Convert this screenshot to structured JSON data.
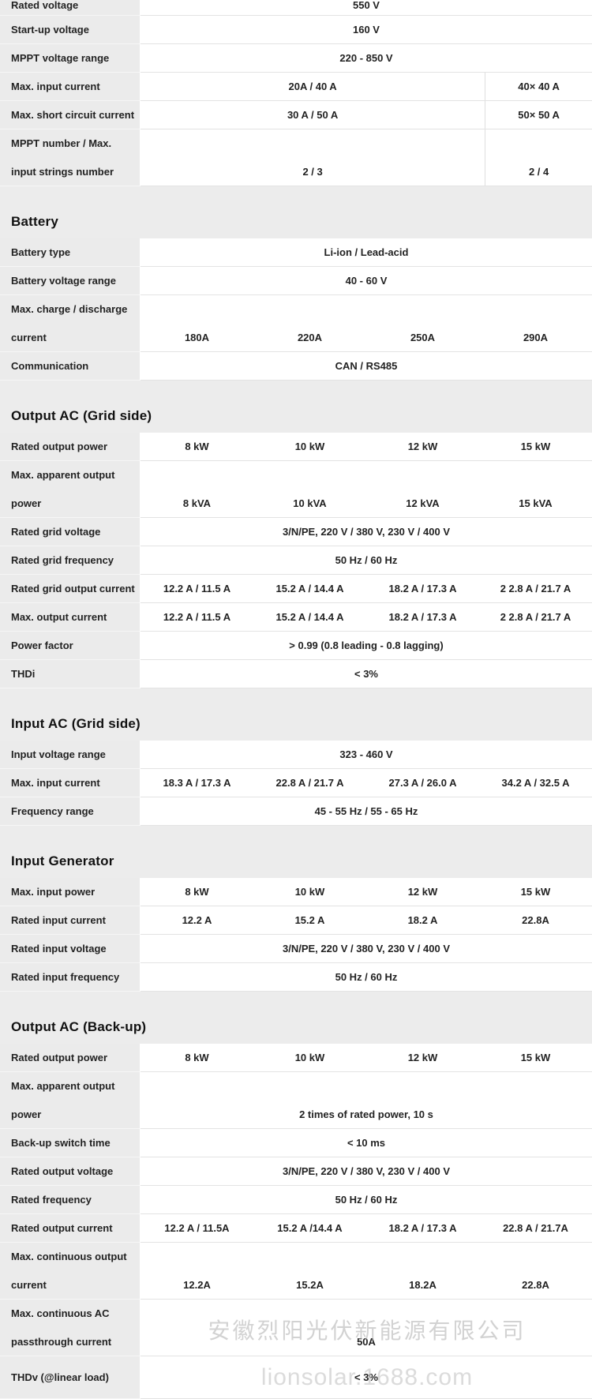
{
  "colors": {
    "label_bg": "#ebebeb",
    "section_bg": "#ececec",
    "row_border": "#e3e3e3",
    "text": "#222222",
    "watermark": "#c0c0c0"
  },
  "watermark": {
    "line1": "安徽烈阳光伏新能源有限公司",
    "line2": "lionsolar.1688.com"
  },
  "blocks": [
    {
      "type": "row",
      "variant": "partial",
      "label": [
        "Rated voltage"
      ],
      "layout": "full",
      "values": [
        "550 V"
      ]
    },
    {
      "type": "row",
      "label": [
        "Start-up voltage"
      ],
      "layout": "full",
      "values": [
        "160 V"
      ]
    },
    {
      "type": "row",
      "label": [
        "MPPT voltage range"
      ],
      "layout": "full",
      "values": [
        "220 - 850 V"
      ]
    },
    {
      "type": "row",
      "label": [
        "Max. input current"
      ],
      "layout": "split",
      "values": [
        "20A / 40 A",
        "40× 40 A"
      ]
    },
    {
      "type": "row",
      "label": [
        "Max. short circuit current"
      ],
      "layout": "split",
      "values": [
        "30 A / 50 A",
        "50× 50 A"
      ]
    },
    {
      "type": "row",
      "label": [
        "MPPT number / Max.",
        "input strings number"
      ],
      "layout": "split",
      "values": [
        "2 / 3",
        "2 / 4"
      ]
    },
    {
      "type": "section",
      "title": "Battery"
    },
    {
      "type": "row",
      "label": [
        "Battery type"
      ],
      "layout": "full",
      "values": [
        "Li-ion / Lead-acid"
      ]
    },
    {
      "type": "row",
      "label": [
        "Battery voltage range"
      ],
      "layout": "full",
      "values": [
        "40 - 60 V"
      ]
    },
    {
      "type": "row",
      "label": [
        "Max. charge / discharge",
        "current"
      ],
      "layout": "quad",
      "values": [
        "180A",
        "220A",
        "250A",
        "290A"
      ]
    },
    {
      "type": "row",
      "label": [
        "Communication"
      ],
      "layout": "full",
      "values": [
        "CAN / RS485"
      ]
    },
    {
      "type": "section",
      "title": "Output AC (Grid side)"
    },
    {
      "type": "row",
      "label": [
        "Rated output power"
      ],
      "layout": "quad",
      "values": [
        "8 kW",
        "10 kW",
        "12 kW",
        "15 kW"
      ]
    },
    {
      "type": "row",
      "label": [
        "Max. apparent output",
        "power"
      ],
      "layout": "quad",
      "values": [
        "8 kVA",
        "10 kVA",
        "12 kVA",
        "15 kVA"
      ]
    },
    {
      "type": "row",
      "label": [
        "Rated grid voltage"
      ],
      "layout": "full",
      "values": [
        "3/N/PE, 220 V / 380 V, 230 V / 400 V"
      ]
    },
    {
      "type": "row",
      "label": [
        "Rated grid frequency"
      ],
      "layout": "full",
      "values": [
        "50 Hz / 60 Hz"
      ]
    },
    {
      "type": "row",
      "label": [
        "Rated grid output current"
      ],
      "layout": "quad",
      "values": [
        "12.2 A / 11.5 A",
        "15.2 A / 14.4 A",
        "18.2 A / 17.3 A",
        "2 2.8 A / 21.7 A"
      ]
    },
    {
      "type": "row",
      "label": [
        "Max. output current"
      ],
      "layout": "quad",
      "values": [
        "12.2 A / 11.5 A",
        "15.2 A / 14.4 A",
        "18.2 A / 17.3 A",
        "2 2.8 A / 21.7 A"
      ]
    },
    {
      "type": "row",
      "label": [
        "Power factor"
      ],
      "layout": "full",
      "values": [
        "> 0.99 (0.8 leading - 0.8 lagging)"
      ]
    },
    {
      "type": "row",
      "label": [
        "THDi"
      ],
      "layout": "full",
      "values": [
        "< 3%"
      ]
    },
    {
      "type": "section",
      "title": "Input AC (Grid side)"
    },
    {
      "type": "row",
      "label": [
        "Input voltage range"
      ],
      "layout": "full",
      "values": [
        "323 - 460 V"
      ]
    },
    {
      "type": "row",
      "label": [
        "Max. input current"
      ],
      "layout": "quad",
      "values": [
        "18.3 A / 17.3 A",
        "22.8 A / 21.7 A",
        "27.3 A / 26.0 A",
        "34.2 A / 32.5 A"
      ]
    },
    {
      "type": "row",
      "label": [
        "Frequency range"
      ],
      "layout": "full",
      "values": [
        "45 - 55 Hz / 55 - 65 Hz"
      ]
    },
    {
      "type": "section",
      "title": "Input Generator"
    },
    {
      "type": "row",
      "label": [
        "Max. input power"
      ],
      "layout": "quad",
      "values": [
        "8 kW",
        "10 kW",
        "12 kW",
        "15 kW"
      ]
    },
    {
      "type": "row",
      "label": [
        "Rated input current"
      ],
      "layout": "quad",
      "values": [
        "12.2 A",
        "15.2 A",
        "18.2 A",
        "22.8A"
      ]
    },
    {
      "type": "row",
      "label": [
        "Rated input voltage"
      ],
      "layout": "full",
      "values": [
        "3/N/PE, 220 V / 380 V, 230 V / 400 V"
      ]
    },
    {
      "type": "row",
      "label": [
        "Rated input frequency"
      ],
      "layout": "full",
      "values": [
        "50 Hz / 60 Hz"
      ]
    },
    {
      "type": "section",
      "title": "Output AC (Back-up)"
    },
    {
      "type": "row",
      "label": [
        "Rated output power"
      ],
      "layout": "quad",
      "values": [
        "8 kW",
        "10 kW",
        "12 kW",
        "15 kW"
      ]
    },
    {
      "type": "row",
      "label": [
        "Max. apparent output",
        "power"
      ],
      "layout": "full",
      "values": [
        "2 times of rated power, 10 s"
      ]
    },
    {
      "type": "row",
      "label": [
        "Back-up switch time"
      ],
      "layout": "full",
      "values": [
        "< 10 ms"
      ]
    },
    {
      "type": "row",
      "label": [
        "Rated output voltage"
      ],
      "layout": "full",
      "values": [
        "3/N/PE, 220 V / 380 V, 230 V / 400 V"
      ]
    },
    {
      "type": "row",
      "label": [
        "Rated frequency"
      ],
      "layout": "full",
      "values": [
        "50 Hz / 60 Hz"
      ]
    },
    {
      "type": "row",
      "label": [
        "Rated output current"
      ],
      "layout": "quad",
      "values": [
        "12.2 A / 11.5A",
        "15.2 A /14.4 A",
        "18.2 A / 17.3 A",
        "22.8 A / 21.7A"
      ]
    },
    {
      "type": "row",
      "label": [
        "Max. continuous output",
        "current"
      ],
      "layout": "quad",
      "values": [
        "12.2A",
        "15.2A",
        "18.2A",
        "22.8A"
      ]
    },
    {
      "type": "row",
      "label": [
        "Max. continuous AC",
        "passthrough current"
      ],
      "layout": "full",
      "values": [
        "50A"
      ]
    },
    {
      "type": "row",
      "variant": "tall",
      "label": [
        "THDv (@linear load)"
      ],
      "layout": "full",
      "values": [
        "< 3%"
      ]
    }
  ]
}
